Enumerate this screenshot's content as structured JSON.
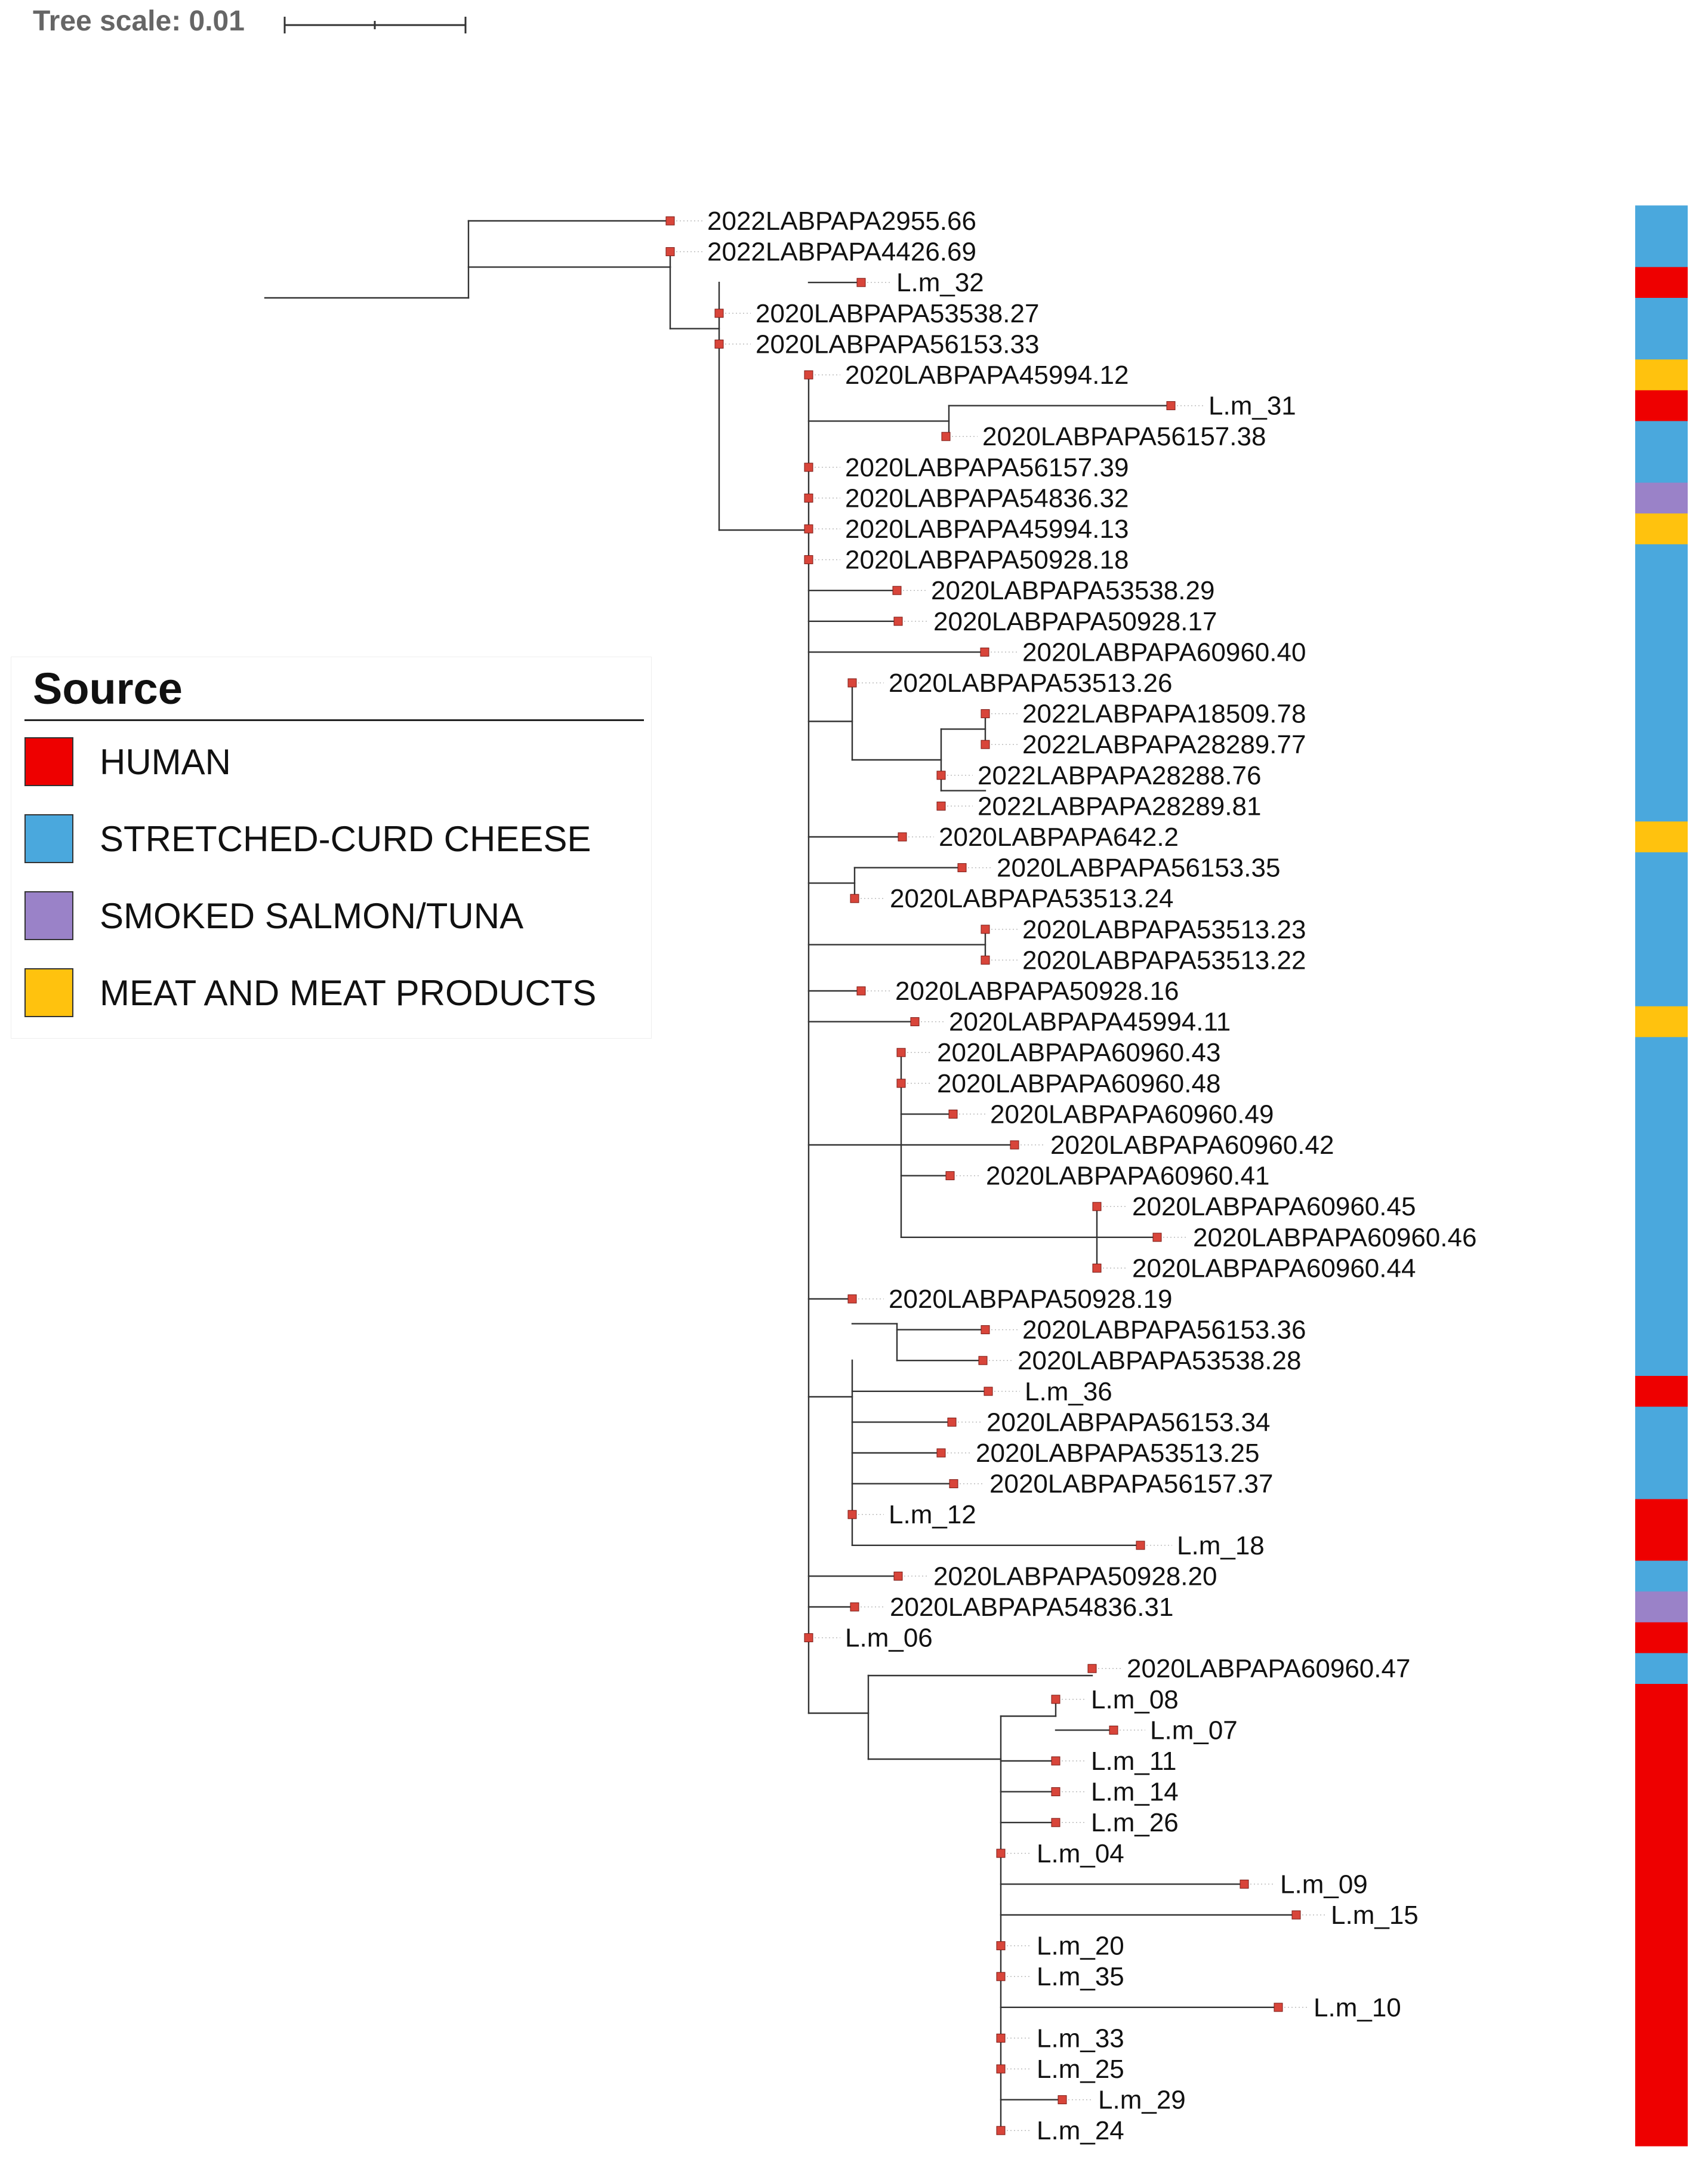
{
  "scale": {
    "label": "Tree scale: 0.01"
  },
  "legend": {
    "title": "Source",
    "items": [
      {
        "label": "HUMAN",
        "color": "#ee0000"
      },
      {
        "label": "STRETCHED-CURD CHEESE",
        "color": "#4aa8dd"
      },
      {
        "label": "SMOKED SALMON/TUNA",
        "color": "#9a82c8"
      },
      {
        "label": "MEAT AND MEAT PRODUCTS",
        "color": "#ffc20e"
      }
    ]
  },
  "colors": {
    "branch": "#333333",
    "node": "#d8453a"
  },
  "tree": {
    "leaves": [
      {
        "name": "2022LABPAPA2955.66",
        "source": "STRETCHED-CURD CHEESE"
      },
      {
        "name": "2022LABPAPA4426.69",
        "source": "STRETCHED-CURD CHEESE"
      },
      {
        "name": "L.m_32",
        "source": "HUMAN"
      },
      {
        "name": "2020LABPAPA53538.27",
        "source": "STRETCHED-CURD CHEESE"
      },
      {
        "name": "2020LABPAPA56153.33",
        "source": "STRETCHED-CURD CHEESE"
      },
      {
        "name": "2020LABPAPA45994.12",
        "source": "MEAT AND MEAT PRODUCTS"
      },
      {
        "name": "L.m_31",
        "source": "HUMAN"
      },
      {
        "name": "2020LABPAPA56157.38",
        "source": "STRETCHED-CURD CHEESE"
      },
      {
        "name": "2020LABPAPA56157.39",
        "source": "STRETCHED-CURD CHEESE"
      },
      {
        "name": "2020LABPAPA54836.32",
        "source": "SMOKED SALMON/TUNA"
      },
      {
        "name": "2020LABPAPA45994.13",
        "source": "MEAT AND MEAT PRODUCTS"
      },
      {
        "name": "2020LABPAPA50928.18",
        "source": "STRETCHED-CURD CHEESE"
      },
      {
        "name": "2020LABPAPA53538.29",
        "source": "STRETCHED-CURD CHEESE"
      },
      {
        "name": "2020LABPAPA50928.17",
        "source": "STRETCHED-CURD CHEESE"
      },
      {
        "name": "2020LABPAPA60960.40",
        "source": "STRETCHED-CURD CHEESE"
      },
      {
        "name": "2020LABPAPA53513.26",
        "source": "STRETCHED-CURD CHEESE"
      },
      {
        "name": "2022LABPAPA18509.78",
        "source": "STRETCHED-CURD CHEESE"
      },
      {
        "name": "2022LABPAPA28289.77",
        "source": "STRETCHED-CURD CHEESE"
      },
      {
        "name": "2022LABPAPA28288.76",
        "source": "STRETCHED-CURD CHEESE"
      },
      {
        "name": "2022LABPAPA28289.81",
        "source": "STRETCHED-CURD CHEESE"
      },
      {
        "name": "2020LABPAPA642.2",
        "source": "MEAT AND MEAT PRODUCTS"
      },
      {
        "name": "2020LABPAPA56153.35",
        "source": "STRETCHED-CURD CHEESE"
      },
      {
        "name": "2020LABPAPA53513.24",
        "source": "STRETCHED-CURD CHEESE"
      },
      {
        "name": "2020LABPAPA53513.23",
        "source": "STRETCHED-CURD CHEESE"
      },
      {
        "name": "2020LABPAPA53513.22",
        "source": "STRETCHED-CURD CHEESE"
      },
      {
        "name": "2020LABPAPA50928.16",
        "source": "STRETCHED-CURD CHEESE"
      },
      {
        "name": "2020LABPAPA45994.11",
        "source": "MEAT AND MEAT PRODUCTS"
      },
      {
        "name": "2020LABPAPA60960.43",
        "source": "STRETCHED-CURD CHEESE"
      },
      {
        "name": "2020LABPAPA60960.48",
        "source": "STRETCHED-CURD CHEESE"
      },
      {
        "name": "2020LABPAPA60960.49",
        "source": "STRETCHED-CURD CHEESE"
      },
      {
        "name": "2020LABPAPA60960.42",
        "source": "STRETCHED-CURD CHEESE"
      },
      {
        "name": "2020LABPAPA60960.41",
        "source": "STRETCHED-CURD CHEESE"
      },
      {
        "name": "2020LABPAPA60960.45",
        "source": "STRETCHED-CURD CHEESE"
      },
      {
        "name": "2020LABPAPA60960.46",
        "source": "STRETCHED-CURD CHEESE"
      },
      {
        "name": "2020LABPAPA60960.44",
        "source": "STRETCHED-CURD CHEESE"
      },
      {
        "name": "2020LABPAPA50928.19",
        "source": "STRETCHED-CURD CHEESE"
      },
      {
        "name": "2020LABPAPA56153.36",
        "source": "STRETCHED-CURD CHEESE"
      },
      {
        "name": "2020LABPAPA53538.28",
        "source": "STRETCHED-CURD CHEESE"
      },
      {
        "name": "L.m_36",
        "source": "HUMAN"
      },
      {
        "name": "2020LABPAPA56153.34",
        "source": "STRETCHED-CURD CHEESE"
      },
      {
        "name": "2020LABPAPA53513.25",
        "source": "STRETCHED-CURD CHEESE"
      },
      {
        "name": "2020LABPAPA56157.37",
        "source": "STRETCHED-CURD CHEESE"
      },
      {
        "name": "L.m_12",
        "source": "HUMAN"
      },
      {
        "name": "L.m_18",
        "source": "HUMAN"
      },
      {
        "name": "2020LABPAPA50928.20",
        "source": "STRETCHED-CURD CHEESE"
      },
      {
        "name": "2020LABPAPA54836.31",
        "source": "SMOKED SALMON/TUNA"
      },
      {
        "name": "L.m_06",
        "source": "HUMAN"
      },
      {
        "name": "2020LABPAPA60960.47",
        "source": "STRETCHED-CURD CHEESE"
      },
      {
        "name": "L.m_08",
        "source": "HUMAN"
      },
      {
        "name": "L.m_07",
        "source": "HUMAN"
      },
      {
        "name": "L.m_11",
        "source": "HUMAN"
      },
      {
        "name": "L.m_14",
        "source": "HUMAN"
      },
      {
        "name": "L.m_26",
        "source": "HUMAN"
      },
      {
        "name": "L.m_04",
        "source": "HUMAN"
      },
      {
        "name": "L.m_09",
        "source": "HUMAN"
      },
      {
        "name": "L.m_15",
        "source": "HUMAN"
      },
      {
        "name": "L.m_20",
        "source": "HUMAN"
      },
      {
        "name": "L.m_35",
        "source": "HUMAN"
      },
      {
        "name": "L.m_10",
        "source": "HUMAN"
      },
      {
        "name": "L.m_33",
        "source": "HUMAN"
      },
      {
        "name": "L.m_25",
        "source": "HUMAN"
      },
      {
        "name": "L.m_29",
        "source": "HUMAN"
      },
      {
        "name": "L.m_24",
        "source": "HUMAN"
      }
    ]
  }
}
